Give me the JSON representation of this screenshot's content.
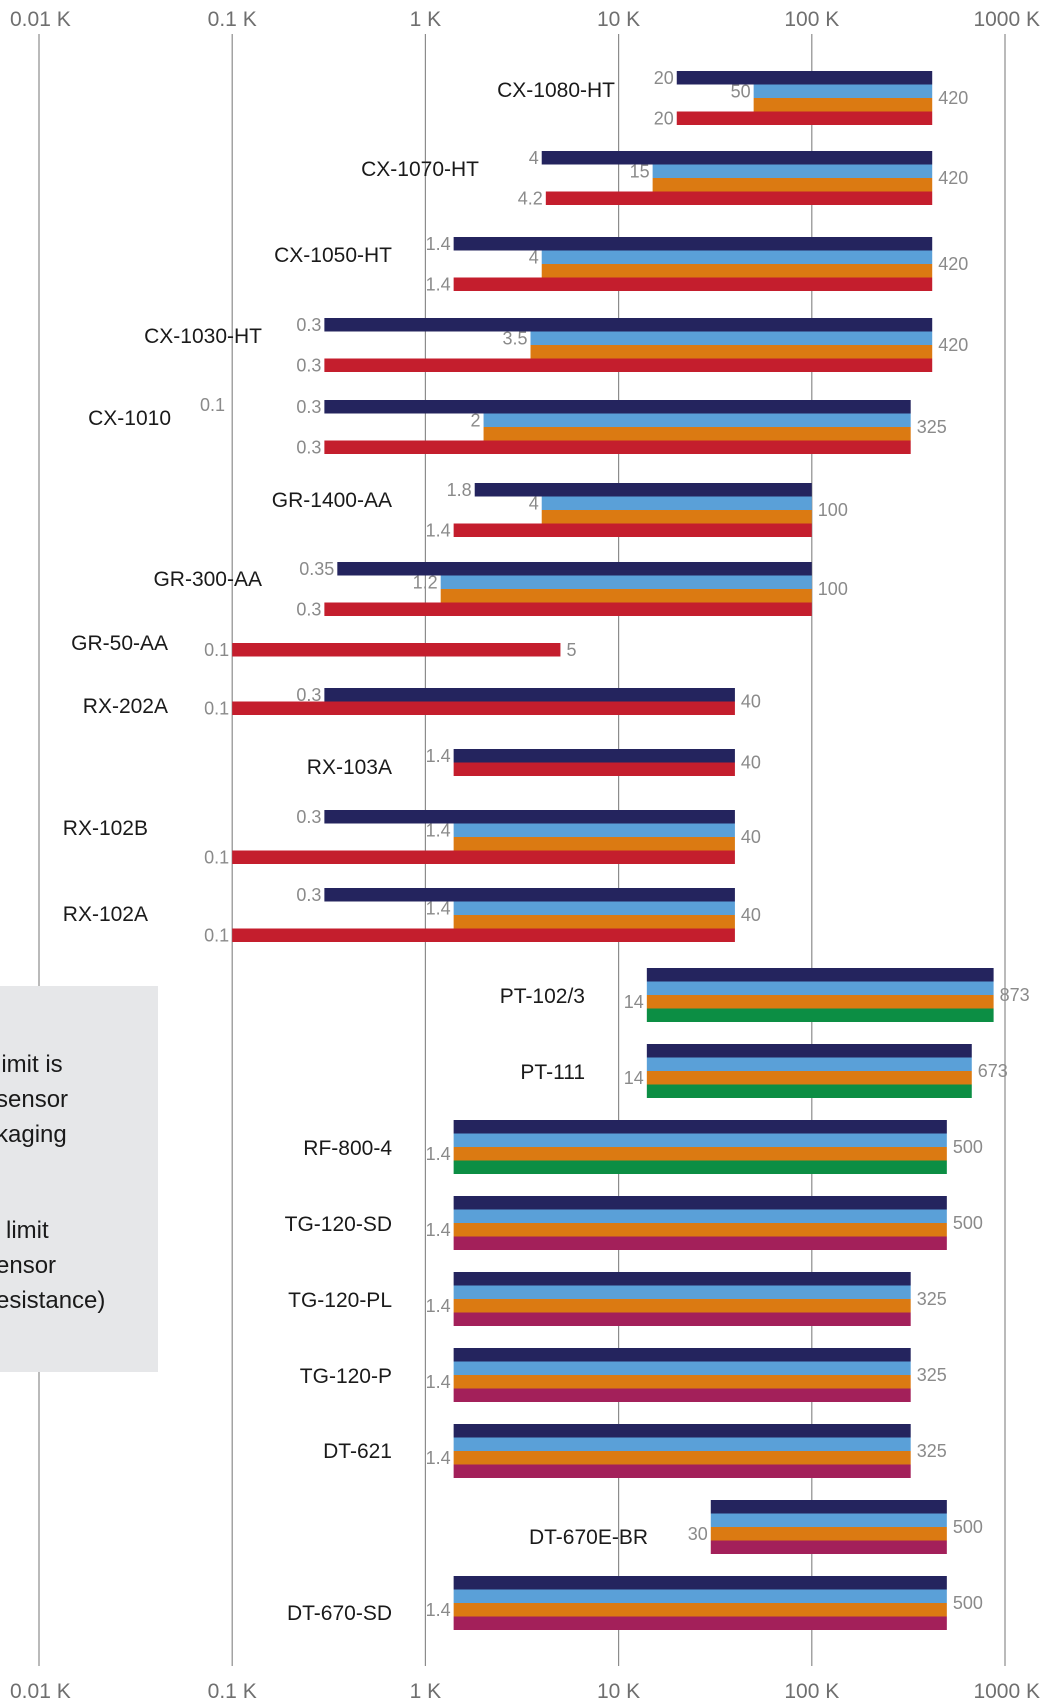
{
  "colors": {
    "background": "#ffffff",
    "gridline": "#8c8c8c",
    "navy": "#24245e",
    "lightblue": "#5aa0d8",
    "orange": "#db7a12",
    "red": "#c41e2d",
    "green": "#0c8e44",
    "magenta": "#a3205a",
    "note_box": "#e6e7e9"
  },
  "note": {
    "lines": [
      "limit is",
      "sensor",
      "kaging",
      "limit",
      "ensor",
      "esistance)"
    ]
  },
  "chart_data": {
    "type": "bar",
    "orientation": "horizontal",
    "x_scale": "log",
    "xlim": [
      0.01,
      1000
    ],
    "grid": true,
    "x_ticks": [
      {
        "value": 0.01,
        "label": "0.01 K"
      },
      {
        "value": 0.1,
        "label": "0.1 K"
      },
      {
        "value": 1,
        "label": "1 K"
      },
      {
        "value": 10,
        "label": "10 K"
      },
      {
        "value": 100,
        "label": "100 K"
      },
      {
        "value": 1000,
        "label": "1000 K"
      }
    ],
    "sensors": [
      {
        "name": "CX-1080-HT",
        "bars": [
          {
            "color": "navy",
            "min": 20,
            "max": 420,
            "min_label": "20"
          },
          {
            "color": "lightblue",
            "min": 50,
            "max": 420,
            "min_label": "50"
          },
          {
            "color": "orange",
            "min": 50,
            "max": 420
          },
          {
            "color": "red",
            "min": 20,
            "max": 420,
            "min_label": "20"
          }
        ],
        "max_label": "420"
      },
      {
        "name": "CX-1070-HT",
        "bars": [
          {
            "color": "navy",
            "min": 4,
            "max": 420,
            "min_label": "4"
          },
          {
            "color": "lightblue",
            "min": 15,
            "max": 420,
            "min_label": "15"
          },
          {
            "color": "orange",
            "min": 15,
            "max": 420
          },
          {
            "color": "red",
            "min": 4.2,
            "max": 420,
            "min_label": "4.2"
          }
        ],
        "max_label": "420"
      },
      {
        "name": "CX-1050-HT",
        "bars": [
          {
            "color": "navy",
            "min": 1.4,
            "max": 420,
            "min_label": "1.4"
          },
          {
            "color": "lightblue",
            "min": 4,
            "max": 420,
            "min_label": "4"
          },
          {
            "color": "orange",
            "min": 4,
            "max": 420
          },
          {
            "color": "red",
            "min": 1.4,
            "max": 420,
            "min_label": "1.4"
          }
        ],
        "max_label": "420"
      },
      {
        "name": "CX-1030-HT",
        "bars": [
          {
            "color": "navy",
            "min": 0.3,
            "max": 420,
            "min_label": "0.3"
          },
          {
            "color": "lightblue",
            "min": 3.5,
            "max": 420,
            "min_label": "3.5"
          },
          {
            "color": "orange",
            "min": 3.5,
            "max": 420
          },
          {
            "color": "red",
            "min": 0.3,
            "max": 420,
            "min_label": "0.3"
          }
        ],
        "max_label": "420"
      },
      {
        "name": "CX-1010",
        "extra_label": "0.1",
        "bars": [
          {
            "color": "navy",
            "min": 0.3,
            "max": 325,
            "min_label": "0.3"
          },
          {
            "color": "lightblue",
            "min": 2,
            "max": 325,
            "min_label": "2"
          },
          {
            "color": "orange",
            "min": 2,
            "max": 325
          },
          {
            "color": "red",
            "min": 0.3,
            "max": 325,
            "min_label": "0.3"
          }
        ],
        "max_label": "325"
      },
      {
        "name": "GR-1400-AA",
        "bars": [
          {
            "color": "navy",
            "min": 1.8,
            "max": 100,
            "min_label": "1.8"
          },
          {
            "color": "lightblue",
            "min": 4,
            "max": 100,
            "min_label": "4"
          },
          {
            "color": "orange",
            "min": 4,
            "max": 100
          },
          {
            "color": "red",
            "min": 1.4,
            "max": 100,
            "min_label": "1.4"
          }
        ],
        "max_label": "100"
      },
      {
        "name": "GR-300-AA",
        "bars": [
          {
            "color": "navy",
            "min": 0.35,
            "max": 100,
            "min_label": "0.35"
          },
          {
            "color": "lightblue",
            "min": 1.2,
            "max": 100,
            "min_label": "1.2"
          },
          {
            "color": "orange",
            "min": 1.2,
            "max": 100
          },
          {
            "color": "red",
            "min": 0.3,
            "max": 100,
            "min_label": "0.3"
          }
        ],
        "max_label": "100"
      },
      {
        "name": "GR-50-AA",
        "bars": [
          {
            "color": "red",
            "min": 0.1,
            "max": 5,
            "min_label": "0.1"
          }
        ],
        "max_label": "5"
      },
      {
        "name": "RX-202A",
        "bars": [
          {
            "color": "navy",
            "min": 0.3,
            "max": 40,
            "min_label": "0.3"
          },
          {
            "color": "red",
            "min": 0.1,
            "max": 40,
            "min_label": "0.1"
          }
        ],
        "max_label": "40"
      },
      {
        "name": "RX-103A",
        "bars": [
          {
            "color": "navy",
            "min": 1.4,
            "max": 40,
            "min_label": "1.4"
          },
          {
            "color": "red",
            "min": 1.4,
            "max": 40
          }
        ],
        "max_label": "40"
      },
      {
        "name": "RX-102B",
        "bars": [
          {
            "color": "navy",
            "min": 0.3,
            "max": 40,
            "min_label": "0.3"
          },
          {
            "color": "lightblue",
            "min": 1.4,
            "max": 40,
            "min_label": "1.4"
          },
          {
            "color": "orange",
            "min": 1.4,
            "max": 40
          },
          {
            "color": "red",
            "min": 0.1,
            "max": 40,
            "min_label": "0.1"
          }
        ],
        "max_label": "40"
      },
      {
        "name": "RX-102A",
        "bars": [
          {
            "color": "navy",
            "min": 0.3,
            "max": 40,
            "min_label": "0.3"
          },
          {
            "color": "lightblue",
            "min": 1.4,
            "max": 40,
            "min_label": "1.4"
          },
          {
            "color": "orange",
            "min": 1.4,
            "max": 40
          },
          {
            "color": "red",
            "min": 0.1,
            "max": 40,
            "min_label": "0.1"
          }
        ],
        "max_label": "40"
      },
      {
        "name": "PT-102/3",
        "bars": [
          {
            "color": "navy",
            "min": 14,
            "max": 873
          },
          {
            "color": "lightblue",
            "min": 14,
            "max": 873
          },
          {
            "color": "orange",
            "min": 14,
            "max": 873,
            "min_label": "14"
          },
          {
            "color": "green",
            "min": 14,
            "max": 873
          }
        ],
        "max_label": "873"
      },
      {
        "name": "PT-111",
        "bars": [
          {
            "color": "navy",
            "min": 14,
            "max": 673
          },
          {
            "color": "lightblue",
            "min": 14,
            "max": 673
          },
          {
            "color": "orange",
            "min": 14,
            "max": 673,
            "min_label": "14"
          },
          {
            "color": "green",
            "min": 14,
            "max": 673
          }
        ],
        "max_label": "673"
      },
      {
        "name": "RF-800-4",
        "bars": [
          {
            "color": "navy",
            "min": 1.4,
            "max": 500
          },
          {
            "color": "lightblue",
            "min": 1.4,
            "max": 500
          },
          {
            "color": "orange",
            "min": 1.4,
            "max": 500,
            "min_label": "1.4"
          },
          {
            "color": "green",
            "min": 1.4,
            "max": 500
          }
        ],
        "max_label": "500"
      },
      {
        "name": "TG-120-SD",
        "bars": [
          {
            "color": "navy",
            "min": 1.4,
            "max": 500
          },
          {
            "color": "lightblue",
            "min": 1.4,
            "max": 500
          },
          {
            "color": "orange",
            "min": 1.4,
            "max": 500,
            "min_label": "1.4"
          },
          {
            "color": "magenta",
            "min": 1.4,
            "max": 500
          }
        ],
        "max_label": "500"
      },
      {
        "name": "TG-120-PL",
        "bars": [
          {
            "color": "navy",
            "min": 1.4,
            "max": 325
          },
          {
            "color": "lightblue",
            "min": 1.4,
            "max": 325
          },
          {
            "color": "orange",
            "min": 1.4,
            "max": 325,
            "min_label": "1.4"
          },
          {
            "color": "magenta",
            "min": 1.4,
            "max": 325
          }
        ],
        "max_label": "325"
      },
      {
        "name": "TG-120-P",
        "bars": [
          {
            "color": "navy",
            "min": 1.4,
            "max": 325
          },
          {
            "color": "lightblue",
            "min": 1.4,
            "max": 325
          },
          {
            "color": "orange",
            "min": 1.4,
            "max": 325,
            "min_label": "1.4"
          },
          {
            "color": "magenta",
            "min": 1.4,
            "max": 325
          }
        ],
        "max_label": "325"
      },
      {
        "name": "DT-621",
        "bars": [
          {
            "color": "navy",
            "min": 1.4,
            "max": 325
          },
          {
            "color": "lightblue",
            "min": 1.4,
            "max": 325
          },
          {
            "color": "orange",
            "min": 1.4,
            "max": 325,
            "min_label": "1.4"
          },
          {
            "color": "magenta",
            "min": 1.4,
            "max": 325
          }
        ],
        "max_label": "325"
      },
      {
        "name": "DT-670E-BR",
        "bars": [
          {
            "color": "navy",
            "min": 30,
            "max": 500
          },
          {
            "color": "lightblue",
            "min": 30,
            "max": 500
          },
          {
            "color": "orange",
            "min": 30,
            "max": 500,
            "min_label": "30"
          },
          {
            "color": "magenta",
            "min": 30,
            "max": 500
          }
        ],
        "max_label": "500"
      },
      {
        "name": "DT-670-SD",
        "bars": [
          {
            "color": "navy",
            "min": 1.4,
            "max": 500
          },
          {
            "color": "lightblue",
            "min": 1.4,
            "max": 500
          },
          {
            "color": "orange",
            "min": 1.4,
            "max": 500,
            "min_label": "1.4"
          },
          {
            "color": "magenta",
            "min": 1.4,
            "max": 500
          }
        ],
        "max_label": "500"
      }
    ]
  }
}
